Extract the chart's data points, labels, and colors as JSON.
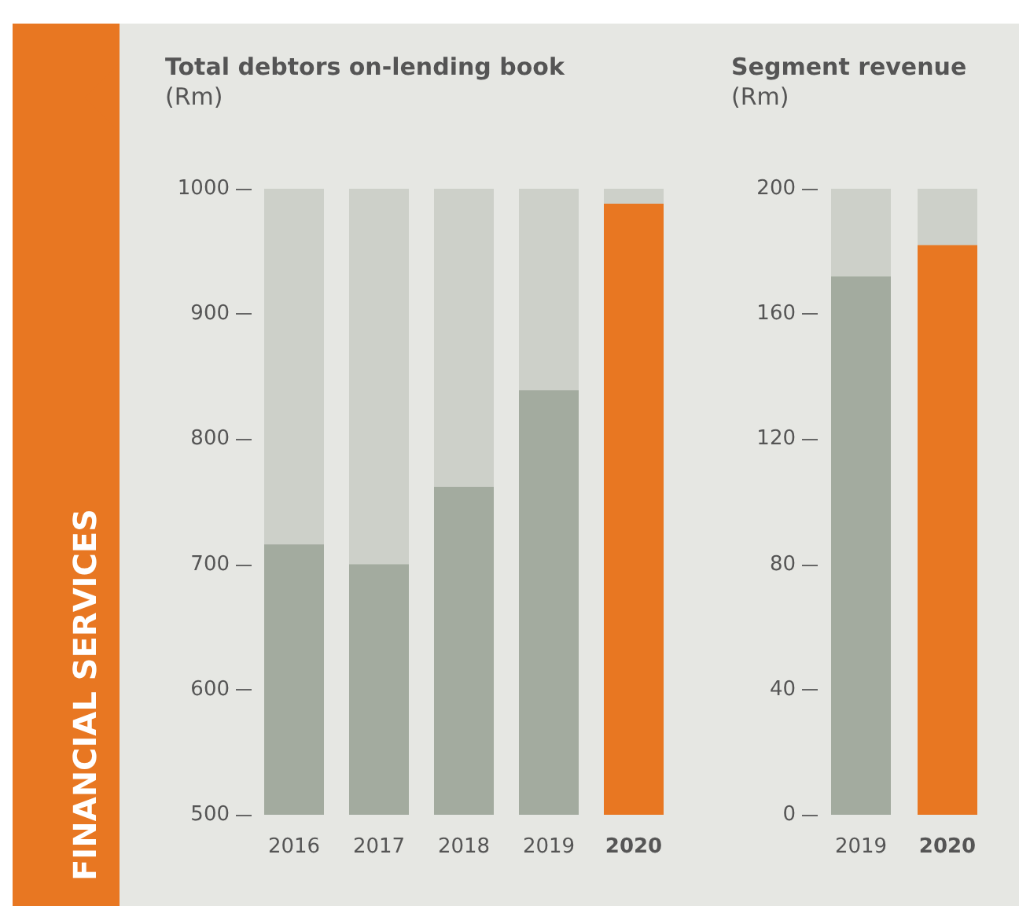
{
  "chart_data": [
    {
      "type": "bar",
      "title": "Total debtors on-lending book",
      "subtitle": "(Rm)",
      "annotations": [
        "FINANCIAL SERVICES"
      ],
      "categories": [
        "2016",
        "2017",
        "2018",
        "2019",
        "2020"
      ],
      "values": [
        716,
        700,
        762,
        839,
        988
      ],
      "colors": [
        "#a3ab9f",
        "#a3ab9f",
        "#a3ab9f",
        "#a3ab9f",
        "#e87722"
      ],
      "ylim": [
        500,
        1000
      ],
      "yticks": [
        500,
        600,
        700,
        800,
        900,
        1000
      ],
      "grid": false
    },
    {
      "type": "bar",
      "title": "Segment revenue",
      "subtitle": "(Rm)",
      "categories": [
        "2019",
        "2020"
      ],
      "values": [
        172,
        182
      ],
      "colors": [
        "#a3ab9f",
        "#e87722"
      ],
      "ylim": [
        0,
        200
      ],
      "yticks": [
        0,
        40,
        80,
        120,
        160,
        200
      ],
      "grid": false
    }
  ]
}
